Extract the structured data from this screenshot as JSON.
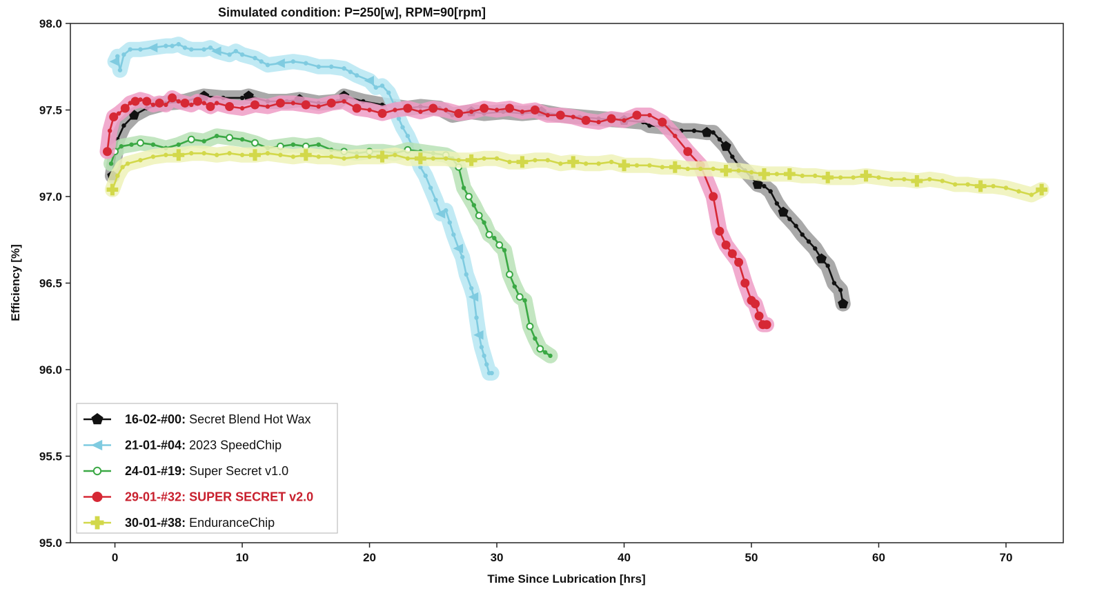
{
  "chart_data": {
    "type": "line",
    "title": "Simulated condition: P=250[w], RPM=90[rpm]",
    "xlabel": "Time Since Lubrication [hrs]",
    "ylabel": "Efficiency [%]",
    "xlim": [
      -3.5,
      74.5
    ],
    "ylim": [
      95.0,
      98.0
    ],
    "xticks": [
      0,
      10,
      20,
      30,
      40,
      50,
      60,
      70
    ],
    "yticks": [
      "95.0",
      "95.5",
      "96.0",
      "96.5",
      "97.0",
      "97.5",
      "98.0"
    ],
    "grid": false,
    "legend_position": "bottom-left",
    "series": [
      {
        "code": "16-02-#00:",
        "label": " Secret Blend Hot Wax",
        "color": "#111111",
        "halo": "#9a9a9a",
        "marker": "pentagon",
        "label_bold": false,
        "label_color": "#111111",
        "x": [
          -0.2,
          0.2,
          0.7,
          1.5,
          2.5,
          4,
          5.5,
          7,
          8.5,
          10,
          10.5,
          12,
          13.5,
          14.5,
          16,
          17.5,
          18,
          19.5,
          21,
          22,
          23,
          24,
          25.5,
          26.5,
          28,
          29,
          30.5,
          32,
          33.5,
          35,
          36.5,
          38,
          40,
          41.5,
          42,
          43.5,
          44.5,
          45.5,
          46.5,
          47,
          47.5,
          48,
          48.5,
          49,
          49.5,
          50,
          50.5,
          51,
          51.5,
          52,
          52.5,
          53,
          53.5,
          54,
          54.5,
          55,
          55.5,
          56,
          56.5,
          57,
          57.2
        ],
        "y": [
          97.12,
          97.33,
          97.41,
          97.47,
          97.51,
          97.54,
          97.55,
          97.58,
          97.57,
          97.57,
          97.58,
          97.55,
          97.55,
          97.56,
          97.54,
          97.55,
          97.58,
          97.55,
          97.53,
          97.52,
          97.51,
          97.52,
          97.51,
          97.47,
          97.49,
          97.48,
          97.49,
          97.48,
          97.49,
          97.47,
          97.46,
          97.45,
          97.44,
          97.43,
          97.41,
          97.4,
          97.38,
          97.38,
          97.37,
          97.37,
          97.33,
          97.29,
          97.23,
          97.18,
          97.15,
          97.11,
          97.07,
          97.06,
          97.03,
          96.96,
          96.91,
          96.87,
          96.83,
          96.78,
          96.74,
          96.7,
          96.64,
          96.6,
          96.5,
          96.46,
          96.38
        ],
        "big_markers": [
          0,
          3,
          7,
          10,
          13,
          16,
          19,
          24,
          28,
          32,
          38,
          41,
          46,
          50,
          56,
          60
        ]
      },
      {
        "code": "21-01-#04:",
        "label": " 2023 SpeedChip",
        "color": "#7fcbe0",
        "halo": "#b6e6f2",
        "marker": "triangle-left",
        "label_bold": false,
        "label_color": "#111111",
        "x": [
          0,
          0.2,
          0.4,
          0.7,
          1.2,
          2,
          3,
          4,
          4.5,
          5,
          5.5,
          6,
          7,
          7.5,
          8,
          9,
          9.5,
          10,
          11,
          11.5,
          12,
          13,
          14,
          15,
          16,
          17,
          18,
          18.5,
          19,
          20,
          20.5,
          21,
          21.5,
          22,
          22.3,
          22.6,
          23,
          23.3,
          23.6,
          24,
          24.4,
          24.8,
          25.2,
          25.6,
          26,
          26.3,
          26.6,
          27,
          27.3,
          27.6,
          28,
          28.2,
          28.4,
          28.6,
          28.8,
          29,
          29.2,
          29.4,
          29.6
        ],
        "y": [
          97.78,
          97.81,
          97.73,
          97.82,
          97.85,
          97.85,
          97.86,
          97.87,
          97.87,
          97.88,
          97.86,
          97.85,
          97.85,
          97.86,
          97.84,
          97.82,
          97.84,
          97.82,
          97.8,
          97.78,
          97.76,
          97.77,
          97.78,
          97.77,
          97.75,
          97.75,
          97.74,
          97.72,
          97.7,
          97.67,
          97.63,
          97.64,
          97.6,
          97.52,
          97.45,
          97.4,
          97.35,
          97.3,
          97.25,
          97.17,
          97.12,
          97.05,
          96.98,
          96.9,
          96.92,
          96.85,
          96.78,
          96.7,
          96.65,
          96.55,
          96.47,
          96.42,
          96.3,
          96.2,
          96.13,
          96.08,
          96.03,
          95.98,
          95.98
        ],
        "big_markers": [
          0,
          6,
          14,
          21,
          29,
          43,
          47,
          51,
          53
        ]
      },
      {
        "code": "24-01-#19:",
        "label": " Super Secret v1.0",
        "color": "#3aa844",
        "halo": "#b9e2b6",
        "marker": "open-circle",
        "label_bold": false,
        "label_color": "#111111",
        "x": [
          -0.3,
          0,
          0.5,
          1.3,
          2,
          3,
          4,
          5,
          6,
          7,
          8,
          9,
          10,
          11,
          12,
          13,
          14,
          15,
          16,
          17,
          18,
          19,
          20,
          21,
          22,
          23,
          24,
          25,
          26,
          26.5,
          27,
          27.4,
          27.8,
          28.2,
          28.6,
          29,
          29.4,
          29.8,
          30.2,
          30.6,
          31,
          31.4,
          31.8,
          32.2,
          32.6,
          33,
          33.4,
          33.8,
          34.2
        ],
        "y": [
          97.19,
          97.26,
          97.29,
          97.3,
          97.31,
          97.3,
          97.28,
          97.3,
          97.33,
          97.32,
          97.35,
          97.34,
          97.33,
          97.31,
          97.28,
          97.29,
          97.3,
          97.29,
          97.3,
          97.27,
          97.26,
          97.25,
          97.26,
          97.26,
          97.25,
          97.27,
          97.26,
          97.25,
          97.24,
          97.22,
          97.17,
          97.05,
          97.0,
          96.95,
          96.89,
          96.85,
          96.78,
          96.76,
          96.72,
          96.69,
          96.55,
          96.48,
          96.42,
          96.4,
          96.25,
          96.18,
          96.12,
          96.1,
          96.08
        ],
        "big_markers": [
          1,
          4,
          8,
          11,
          13,
          15,
          17,
          20,
          22,
          25,
          28,
          30,
          32,
          34,
          36,
          38,
          40,
          42,
          44,
          46
        ]
      },
      {
        "code": "29-01-#32:",
        "label": " SUPER SECRET v2.0",
        "color": "#d62835",
        "halo": "#ef9cc5",
        "marker": "filled-circle",
        "label_bold": true,
        "label_color": "#c8202e",
        "x": [
          -0.6,
          -0.4,
          -0.1,
          0.3,
          0.8,
          1.2,
          1.6,
          2,
          2.5,
          3,
          3.5,
          4,
          4.5,
          5,
          5.5,
          6,
          6.5,
          7,
          7.5,
          8,
          9,
          10,
          11,
          12,
          13,
          14,
          15,
          16,
          17,
          18,
          19,
          20,
          21,
          22,
          23,
          24,
          25,
          26,
          27,
          28,
          29,
          30,
          31,
          32,
          33,
          34,
          35,
          36,
          37,
          38,
          39,
          40,
          41,
          42,
          43,
          44,
          45,
          46,
          47,
          47.5,
          48,
          48.5,
          49,
          49.5,
          50,
          50.3,
          50.6,
          50.9,
          51.2
        ],
        "y": [
          97.26,
          97.38,
          97.46,
          97.48,
          97.51,
          97.54,
          97.55,
          97.56,
          97.55,
          97.53,
          97.54,
          97.53,
          97.57,
          97.55,
          97.54,
          97.53,
          97.55,
          97.54,
          97.52,
          97.54,
          97.52,
          97.51,
          97.53,
          97.52,
          97.54,
          97.54,
          97.53,
          97.52,
          97.54,
          97.55,
          97.51,
          97.5,
          97.48,
          97.5,
          97.51,
          97.49,
          97.51,
          97.5,
          97.48,
          97.49,
          97.51,
          97.5,
          97.51,
          97.49,
          97.5,
          97.47,
          97.47,
          97.46,
          97.44,
          97.43,
          97.45,
          97.44,
          97.47,
          97.47,
          97.43,
          97.35,
          97.26,
          97.18,
          97.0,
          96.8,
          96.72,
          96.67,
          96.62,
          96.5,
          96.4,
          96.38,
          96.31,
          96.26,
          96.26
        ],
        "big_markers": [
          0,
          2,
          4,
          6,
          8,
          10,
          12,
          14,
          16,
          18,
          20,
          22,
          24,
          26,
          28,
          30,
          32,
          34,
          36,
          38,
          40,
          42,
          44,
          46,
          48,
          50,
          52,
          54,
          56,
          57,
          58,
          59,
          60,
          61,
          62,
          63,
          64,
          65,
          66,
          67,
          68
        ]
      },
      {
        "code": "30-01-#38:",
        "label": " EnduranceChip",
        "color": "#d2d84a",
        "halo": "#eef2b8",
        "marker": "plus",
        "label_bold": false,
        "label_color": "#111111",
        "x": [
          -0.2,
          0.2,
          0.6,
          1,
          2,
          3,
          4,
          5,
          6,
          7,
          8,
          9,
          10,
          11,
          12,
          13,
          14,
          15,
          16,
          17,
          18,
          19,
          20,
          21,
          22,
          23,
          24,
          25,
          26,
          27,
          28,
          29,
          30,
          31,
          32,
          33,
          34,
          35,
          36,
          37,
          38,
          39,
          40,
          41,
          42,
          43,
          44,
          45,
          46,
          47,
          48,
          49,
          50,
          51,
          52,
          53,
          54,
          55,
          56,
          57,
          58,
          59,
          60,
          61,
          62,
          63,
          64,
          65,
          66,
          67,
          68,
          69,
          70,
          71,
          72,
          72.8
        ],
        "y": [
          97.04,
          97.12,
          97.17,
          97.19,
          97.21,
          97.23,
          97.24,
          97.24,
          97.25,
          97.25,
          97.24,
          97.25,
          97.24,
          97.24,
          97.25,
          97.24,
          97.23,
          97.24,
          97.23,
          97.23,
          97.22,
          97.23,
          97.23,
          97.23,
          97.24,
          97.22,
          97.22,
          97.22,
          97.22,
          97.21,
          97.21,
          97.22,
          97.22,
          97.2,
          97.2,
          97.21,
          97.21,
          97.19,
          97.2,
          97.19,
          97.19,
          97.2,
          97.18,
          97.18,
          97.18,
          97.17,
          97.17,
          97.16,
          97.16,
          97.16,
          97.15,
          97.15,
          97.14,
          97.13,
          97.13,
          97.13,
          97.12,
          97.12,
          97.11,
          97.11,
          97.11,
          97.12,
          97.11,
          97.1,
          97.1,
          97.09,
          97.1,
          97.09,
          97.07,
          97.07,
          97.06,
          97.06,
          97.05,
          97.03,
          97.01,
          97.04
        ],
        "big_markers": [
          0,
          7,
          13,
          17,
          23,
          26,
          30,
          34,
          38,
          42,
          46,
          50,
          53,
          55,
          58,
          61,
          65,
          70,
          75
        ]
      }
    ]
  }
}
